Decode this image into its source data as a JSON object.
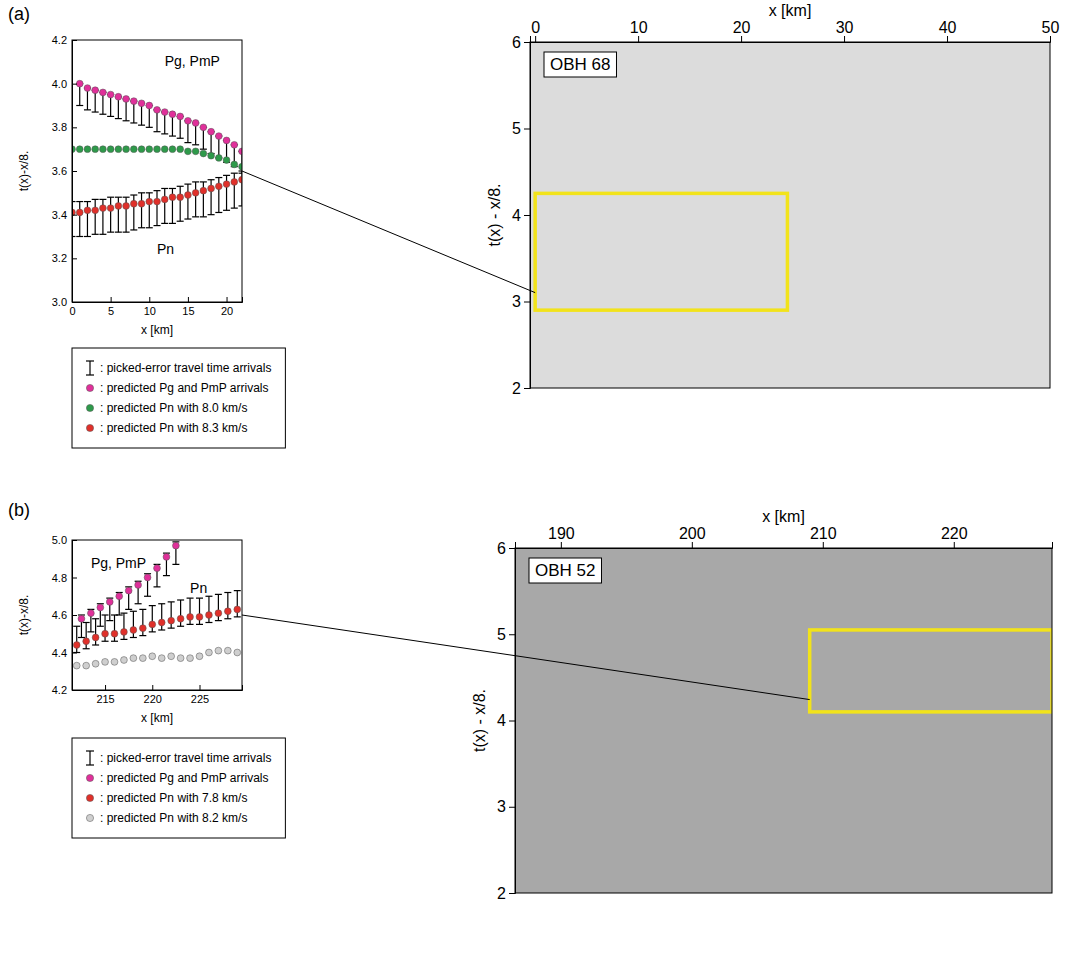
{
  "chart_data": [
    {
      "type": "scatter",
      "panel_label": "(a)",
      "xlabel": "x [km]",
      "ylabel": "t(x)-x/8.",
      "xlim": [
        0,
        22
      ],
      "xticks": [
        0,
        5,
        10,
        15,
        20
      ],
      "ylim": [
        3.0,
        4.2
      ],
      "yticks": [
        {
          "value": 3,
          "label": "3.0"
        },
        3.2,
        3.4,
        3.6,
        3.8,
        {
          "value": 4,
          "label": "4.0"
        },
        4.2
      ],
      "legend": "below",
      "series": [
        {
          "name": ": picked-error travel time arrivals",
          "type": "errorbar",
          "color": "#000000",
          "x": [
            1,
            2,
            3,
            4,
            5,
            6,
            7,
            8,
            9,
            10,
            11,
            12,
            13,
            14,
            15,
            16,
            17,
            18,
            19,
            20,
            21,
            22
          ],
          "values": [
            3.95,
            3.93,
            3.92,
            3.91,
            3.9,
            3.89,
            3.88,
            3.87,
            3.86,
            3.85,
            3.83,
            3.82,
            3.81,
            3.8,
            3.78,
            3.77,
            3.75,
            3.73,
            3.71,
            3.69,
            3.67,
            3.64
          ],
          "errors": [
            0.05,
            0.05,
            0.05,
            0.05,
            0.05,
            0.05,
            0.05,
            0.05,
            0.05,
            0.05,
            0.05,
            0.05,
            0.05,
            0.05,
            0.05,
            0.05,
            0.05,
            0.05,
            0.05,
            0.05,
            0.05,
            0.05
          ]
        },
        {
          "type": "errorbar",
          "color": "#000000",
          "x": [
            0,
            1,
            2,
            3,
            4,
            5,
            6,
            7,
            8,
            9,
            10,
            11,
            12,
            13,
            14,
            15,
            16,
            17,
            18,
            19,
            20,
            21,
            22
          ],
          "values": [
            3.38,
            3.38,
            3.38,
            3.39,
            3.39,
            3.4,
            3.4,
            3.4,
            3.41,
            3.42,
            3.42,
            3.43,
            3.44,
            3.44,
            3.45,
            3.46,
            3.47,
            3.47,
            3.48,
            3.49,
            3.5,
            3.51,
            3.52
          ],
          "errors": [
            0.08,
            0.08,
            0.08,
            0.08,
            0.08,
            0.08,
            0.08,
            0.08,
            0.08,
            0.08,
            0.08,
            0.08,
            0.08,
            0.08,
            0.08,
            0.08,
            0.08,
            0.08,
            0.08,
            0.08,
            0.08,
            0.08,
            0.08
          ]
        },
        {
          "name": ": predicted Pg and PmP arrivals",
          "type": "scatter",
          "color": "#e0309a",
          "marker": "circle",
          "x": [
            1,
            2,
            3,
            4,
            5,
            6,
            7,
            8,
            9,
            10,
            11,
            12,
            13,
            14,
            15,
            16,
            17,
            18,
            19,
            20,
            21,
            22
          ],
          "values": [
            4.0,
            3.98,
            3.97,
            3.96,
            3.95,
            3.94,
            3.93,
            3.92,
            3.91,
            3.9,
            3.88,
            3.87,
            3.86,
            3.85,
            3.83,
            3.82,
            3.8,
            3.78,
            3.76,
            3.74,
            3.72,
            3.69
          ]
        },
        {
          "name": ": predicted Pn with 8.0 km/s",
          "type": "scatter",
          "color": "#2e9a4a",
          "marker": "circle",
          "x": [
            0,
            1,
            2,
            3,
            4,
            5,
            6,
            7,
            8,
            9,
            10,
            11,
            12,
            13,
            14,
            15,
            16,
            17,
            18,
            19,
            20,
            21,
            22
          ],
          "values": [
            3.7,
            3.7,
            3.7,
            3.7,
            3.7,
            3.7,
            3.7,
            3.7,
            3.7,
            3.7,
            3.7,
            3.7,
            3.7,
            3.7,
            3.7,
            3.69,
            3.69,
            3.68,
            3.67,
            3.66,
            3.65,
            3.63,
            3.62
          ]
        },
        {
          "name": ": predicted Pn with 8.3 km/s",
          "type": "scatter",
          "color": "#e0302a",
          "marker": "circle",
          "x": [
            0,
            1,
            2,
            3,
            4,
            5,
            6,
            7,
            8,
            9,
            10,
            11,
            12,
            13,
            14,
            15,
            16,
            17,
            18,
            19,
            20,
            21,
            22
          ],
          "values": [
            3.41,
            3.41,
            3.42,
            3.42,
            3.43,
            3.43,
            3.44,
            3.44,
            3.45,
            3.45,
            3.46,
            3.46,
            3.47,
            3.48,
            3.48,
            3.49,
            3.5,
            3.51,
            3.52,
            3.53,
            3.54,
            3.55,
            3.56
          ]
        }
      ],
      "annotations": [
        {
          "text": "Pg, PmP",
          "x": 12,
          "y": 4.08
        },
        {
          "text": "Pn",
          "x": 11,
          "y": 3.22
        }
      ]
    },
    {
      "type": "record_section",
      "xlabel": "x [km]",
      "ylabel": "t(x) - x/8.",
      "xlim": [
        -0.5,
        50
      ],
      "xticks": [
        0,
        10,
        20,
        30,
        40,
        50
      ],
      "ylim": [
        2,
        6
      ],
      "yticks": [
        2,
        3,
        4,
        5,
        6
      ],
      "annotations": [
        {
          "text": "OBH 68"
        }
      ],
      "highlight": {
        "x": [
          0,
          24.5
        ],
        "y": [
          2.9,
          4.25
        ]
      }
    },
    {
      "type": "scatter",
      "panel_label": "(b)",
      "xlabel": "x [km]",
      "ylabel": "t(x)-x/8.",
      "xlim": [
        211.5,
        229.5
      ],
      "xticks": [
        215,
        220,
        225
      ],
      "ylim": [
        4.2,
        5.0
      ],
      "yticks": [
        4.2,
        4.4,
        4.6,
        4.8,
        {
          "value": 5,
          "label": "5.0"
        }
      ],
      "legend": "below",
      "series": [
        {
          "name": ": picked-error travel time arrivals",
          "type": "errorbar",
          "color": "#000000",
          "x": [
            212.5,
            213.5,
            214.5,
            215.5,
            216.5,
            217.5,
            218.5,
            219.5,
            220.5,
            221.5,
            222.5
          ],
          "values": [
            4.54,
            4.57,
            4.6,
            4.63,
            4.66,
            4.69,
            4.72,
            4.76,
            4.81,
            4.87,
            4.93
          ],
          "errors": [
            0.06,
            0.06,
            0.06,
            0.06,
            0.06,
            0.06,
            0.06,
            0.06,
            0.06,
            0.06,
            0.06
          ]
        },
        {
          "type": "errorbar",
          "color": "#000000",
          "x": [
            212,
            213,
            214,
            215,
            216,
            217,
            218,
            219,
            220,
            221,
            222,
            223,
            224,
            225,
            226,
            227,
            228,
            229
          ],
          "values": [
            4.47,
            4.49,
            4.51,
            4.53,
            4.53,
            4.54,
            4.55,
            4.56,
            4.58,
            4.59,
            4.6,
            4.61,
            4.62,
            4.62,
            4.63,
            4.64,
            4.65,
            4.66
          ],
          "errors": [
            0.07,
            0.07,
            0.07,
            0.07,
            0.07,
            0.07,
            0.07,
            0.07,
            0.07,
            0.07,
            0.07,
            0.07,
            0.07,
            0.07,
            0.07,
            0.07,
            0.07,
            0.07
          ]
        },
        {
          "name": ": predicted Pg and PmP arrivals",
          "type": "scatter",
          "color": "#e0309a",
          "marker": "circle",
          "x": [
            212.5,
            213.5,
            214.5,
            215.5,
            216.5,
            217.5,
            218.5,
            219.5,
            220.5,
            221.5,
            222.5
          ],
          "values": [
            4.58,
            4.61,
            4.64,
            4.67,
            4.7,
            4.73,
            4.76,
            4.8,
            4.85,
            4.91,
            4.97
          ]
        },
        {
          "name": ": predicted Pn with 7.8 km/s",
          "type": "scatter",
          "color": "#e0302a",
          "marker": "circle",
          "x": [
            212,
            213,
            214,
            215,
            216,
            217,
            218,
            219,
            220,
            221,
            222,
            223,
            224,
            225,
            226,
            227,
            228,
            229
          ],
          "values": [
            4.44,
            4.46,
            4.48,
            4.5,
            4.5,
            4.51,
            4.52,
            4.53,
            4.55,
            4.56,
            4.57,
            4.58,
            4.59,
            4.59,
            4.6,
            4.61,
            4.62,
            4.63
          ]
        },
        {
          "name": ": predicted Pn with 8.2 km/s",
          "type": "scatter",
          "color": "#cfcfcf",
          "marker": "circle",
          "x": [
            212,
            213,
            214,
            215,
            216,
            217,
            218,
            219,
            220,
            221,
            222,
            223,
            224,
            225,
            226,
            227,
            228,
            229
          ],
          "values": [
            4.33,
            4.33,
            4.34,
            4.35,
            4.35,
            4.36,
            4.37,
            4.37,
            4.38,
            4.37,
            4.38,
            4.37,
            4.37,
            4.38,
            4.4,
            4.41,
            4.41,
            4.4
          ]
        }
      ],
      "annotations": [
        {
          "text": "Pg, PmP",
          "x": 213.5,
          "y": 4.85
        },
        {
          "text": "Pn",
          "x": 224,
          "y": 4.72
        }
      ]
    },
    {
      "type": "record_section",
      "xlabel": "x [km]",
      "ylabel": "t(x) - x/8.",
      "xlim": [
        186.5,
        227.5
      ],
      "xticks": [
        190,
        200,
        210,
        220
      ],
      "ylim": [
        2,
        6
      ],
      "yticks": [
        2,
        3,
        4,
        5,
        6
      ],
      "annotations": [
        {
          "text": "OBH 52"
        }
      ],
      "highlight": {
        "x": [
          209,
          227.5
        ],
        "y": [
          4.1,
          5.05
        ]
      }
    }
  ]
}
